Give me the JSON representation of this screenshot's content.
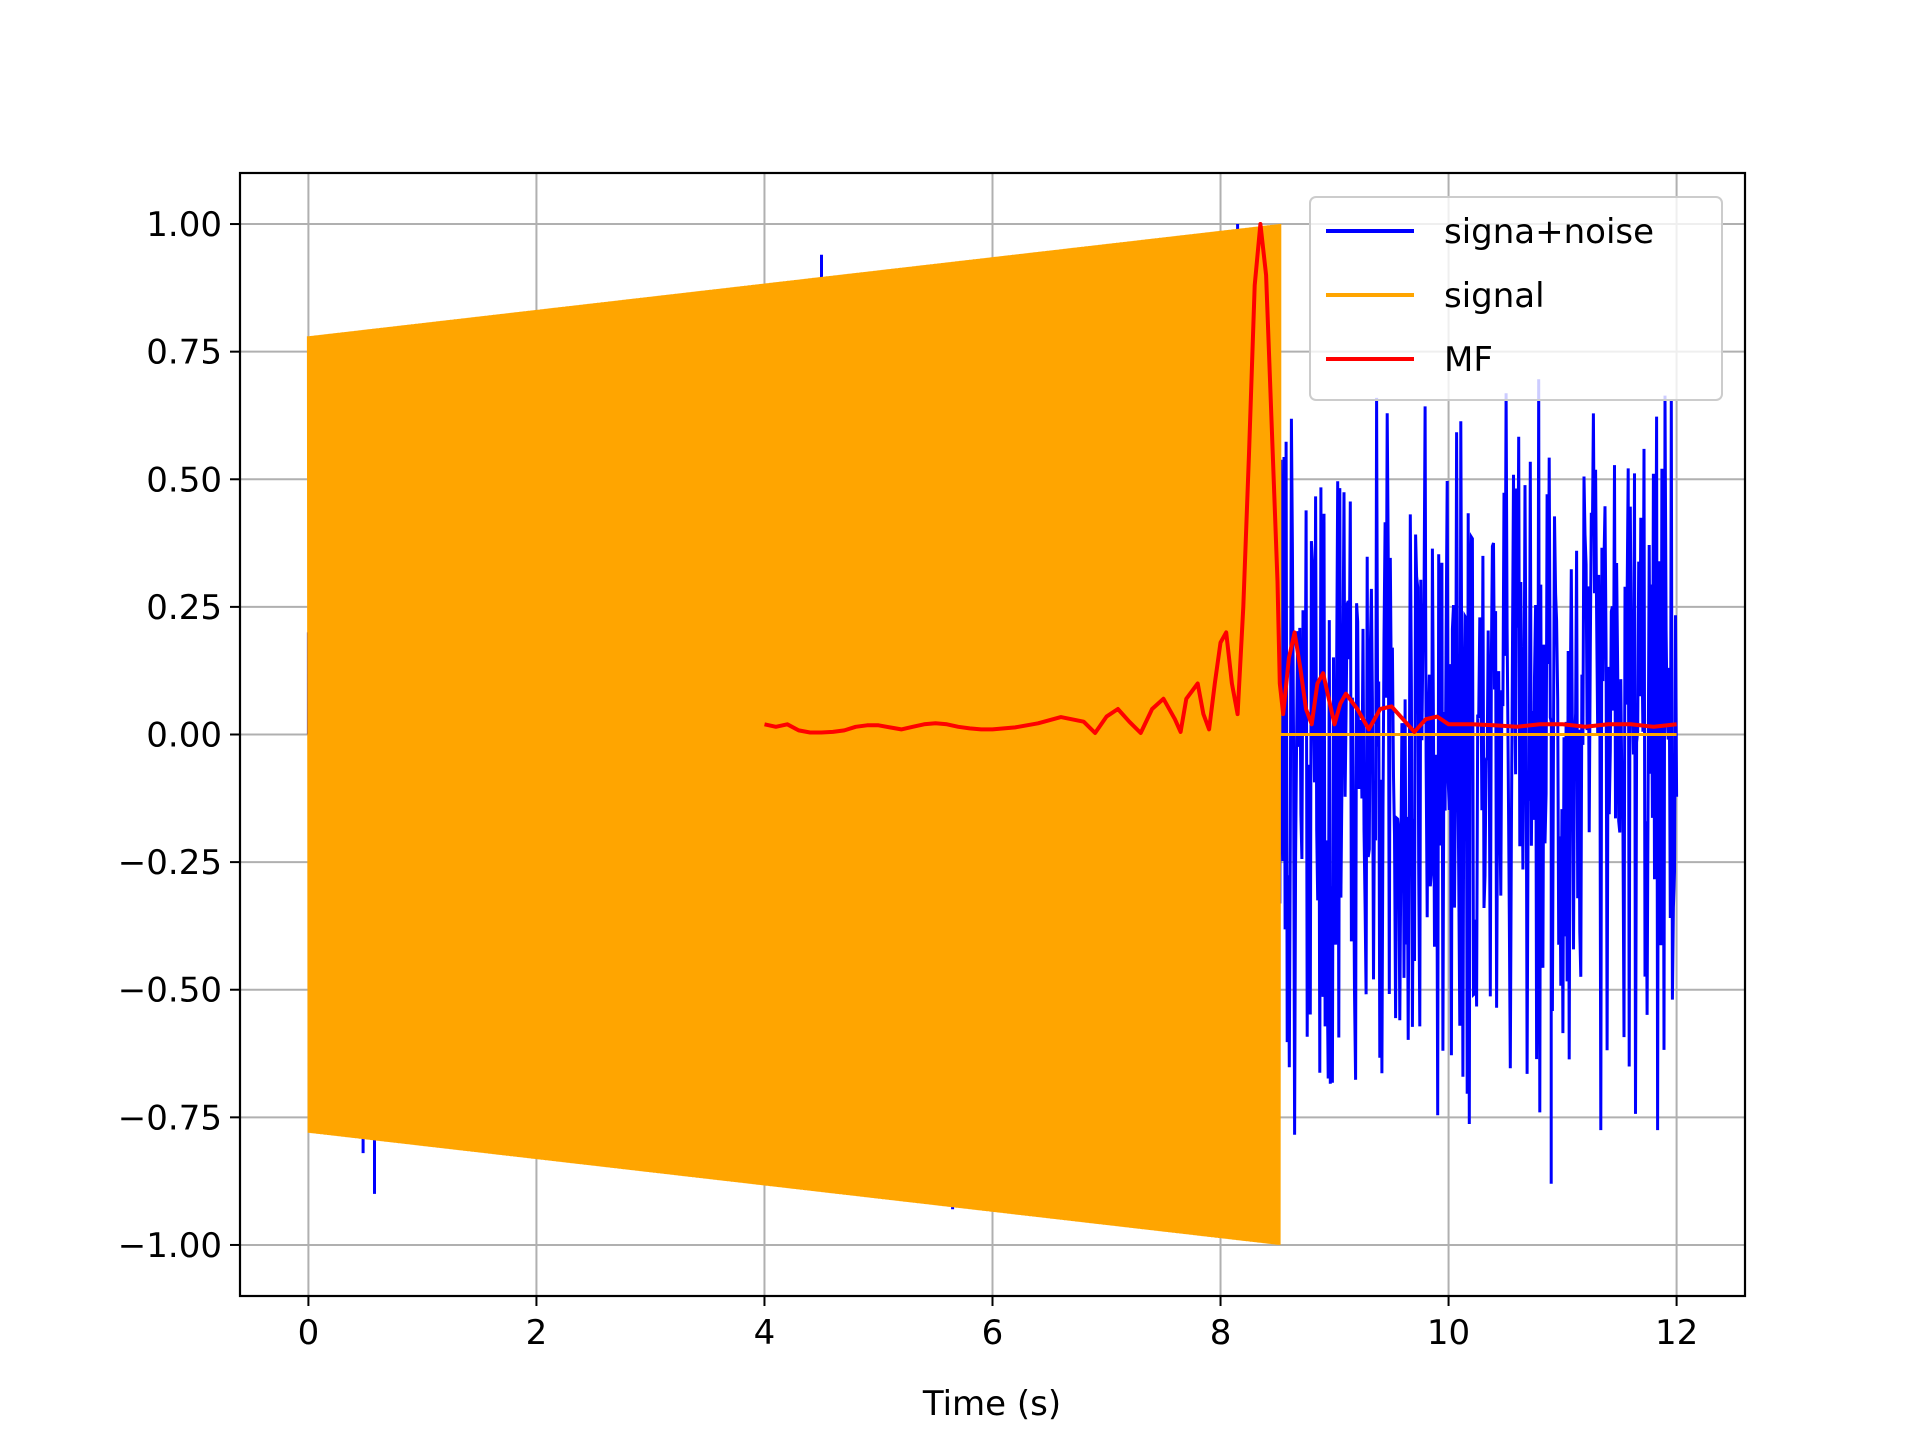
{
  "chart_data": {
    "type": "line",
    "title": "",
    "xlabel": "Time (s)",
    "ylabel": "",
    "xlim": [
      -0.6,
      12.6
    ],
    "ylim": [
      -1.1,
      1.1
    ],
    "grid": true,
    "legend_position": "top-right",
    "x_ticks": [
      0,
      2,
      4,
      6,
      8,
      10,
      12
    ],
    "x_tick_labels": [
      "0",
      "2",
      "4",
      "6",
      "8",
      "10",
      "12"
    ],
    "y_ticks": [
      1.0,
      0.75,
      0.5,
      0.25,
      0.0,
      -0.25,
      -0.5,
      -0.75,
      -1.0
    ],
    "y_tick_labels": [
      "1.00",
      "0.75",
      "0.50",
      "0.25",
      "0.00",
      "−0.25",
      "−0.50",
      "−0.75",
      "−1.00"
    ],
    "series": [
      {
        "name": "signa+noise",
        "color": "#0000ff",
        "description_kind": "noise",
        "x_range": [
          0,
          12
        ],
        "noise_amplitude_range": [
          -0.88,
          0.75
        ],
        "spikes": [
          {
            "x": 0.0,
            "y": 0.2
          },
          {
            "x": 0.48,
            "y": -0.82
          },
          {
            "x": 0.58,
            "y": -0.9
          },
          {
            "x": 2.28,
            "y": -0.83
          },
          {
            "x": 2.85,
            "y": 0.84
          },
          {
            "x": 3.95,
            "y": -0.88
          },
          {
            "x": 4.5,
            "y": 0.94
          },
          {
            "x": 5.65,
            "y": -0.93
          },
          {
            "x": 6.15,
            "y": 0.92
          },
          {
            "x": 6.85,
            "y": -0.95
          },
          {
            "x": 8.15,
            "y": 1.0
          },
          {
            "x": 10.9,
            "y": -0.88
          }
        ]
      },
      {
        "name": "signal",
        "color": "#ffa500",
        "description_kind": "chirp",
        "x_range": [
          0,
          8.52
        ],
        "envelope_start": 0.78,
        "envelope_end": 1.0,
        "after_value": 0.0,
        "after_range": [
          8.52,
          12
        ]
      },
      {
        "name": "MF",
        "color": "#ff0000",
        "x": [
          4.0,
          4.1,
          4.2,
          4.3,
          4.4,
          4.5,
          4.6,
          4.7,
          4.8,
          4.9,
          5.0,
          5.1,
          5.2,
          5.3,
          5.4,
          5.5,
          5.6,
          5.7,
          5.8,
          5.9,
          6.0,
          6.2,
          6.4,
          6.6,
          6.8,
          6.9,
          7.0,
          7.1,
          7.2,
          7.3,
          7.4,
          7.5,
          7.6,
          7.65,
          7.7,
          7.8,
          7.85,
          7.9,
          7.95,
          8.0,
          8.05,
          8.1,
          8.15,
          8.2,
          8.25,
          8.3,
          8.35,
          8.4,
          8.45,
          8.5,
          8.52,
          8.55,
          8.6,
          8.65,
          8.7,
          8.75,
          8.8,
          8.85,
          8.9,
          8.95,
          9.0,
          9.05,
          9.1,
          9.2,
          9.3,
          9.4,
          9.5,
          9.6,
          9.7,
          9.8,
          9.9,
          10.0,
          10.2,
          10.4,
          10.6,
          10.8,
          11.0,
          11.2,
          11.4,
          11.6,
          11.8,
          12.0
        ],
        "y": [
          0.02,
          0.015,
          0.02,
          0.008,
          0.004,
          0.004,
          0.005,
          0.008,
          0.015,
          0.018,
          0.018,
          0.014,
          0.01,
          0.015,
          0.02,
          0.022,
          0.02,
          0.015,
          0.012,
          0.01,
          0.01,
          0.014,
          0.022,
          0.034,
          0.025,
          0.003,
          0.035,
          0.05,
          0.025,
          0.003,
          0.05,
          0.07,
          0.03,
          0.005,
          0.07,
          0.1,
          0.04,
          0.01,
          0.1,
          0.18,
          0.2,
          0.1,
          0.04,
          0.25,
          0.55,
          0.88,
          1.0,
          0.9,
          0.6,
          0.3,
          0.1,
          0.04,
          0.15,
          0.2,
          0.13,
          0.05,
          0.02,
          0.1,
          0.12,
          0.07,
          0.02,
          0.06,
          0.08,
          0.05,
          0.01,
          0.05,
          0.055,
          0.03,
          0.005,
          0.03,
          0.035,
          0.02,
          0.02,
          0.018,
          0.015,
          0.02,
          0.02,
          0.015,
          0.02,
          0.02,
          0.015,
          0.02
        ]
      }
    ]
  }
}
